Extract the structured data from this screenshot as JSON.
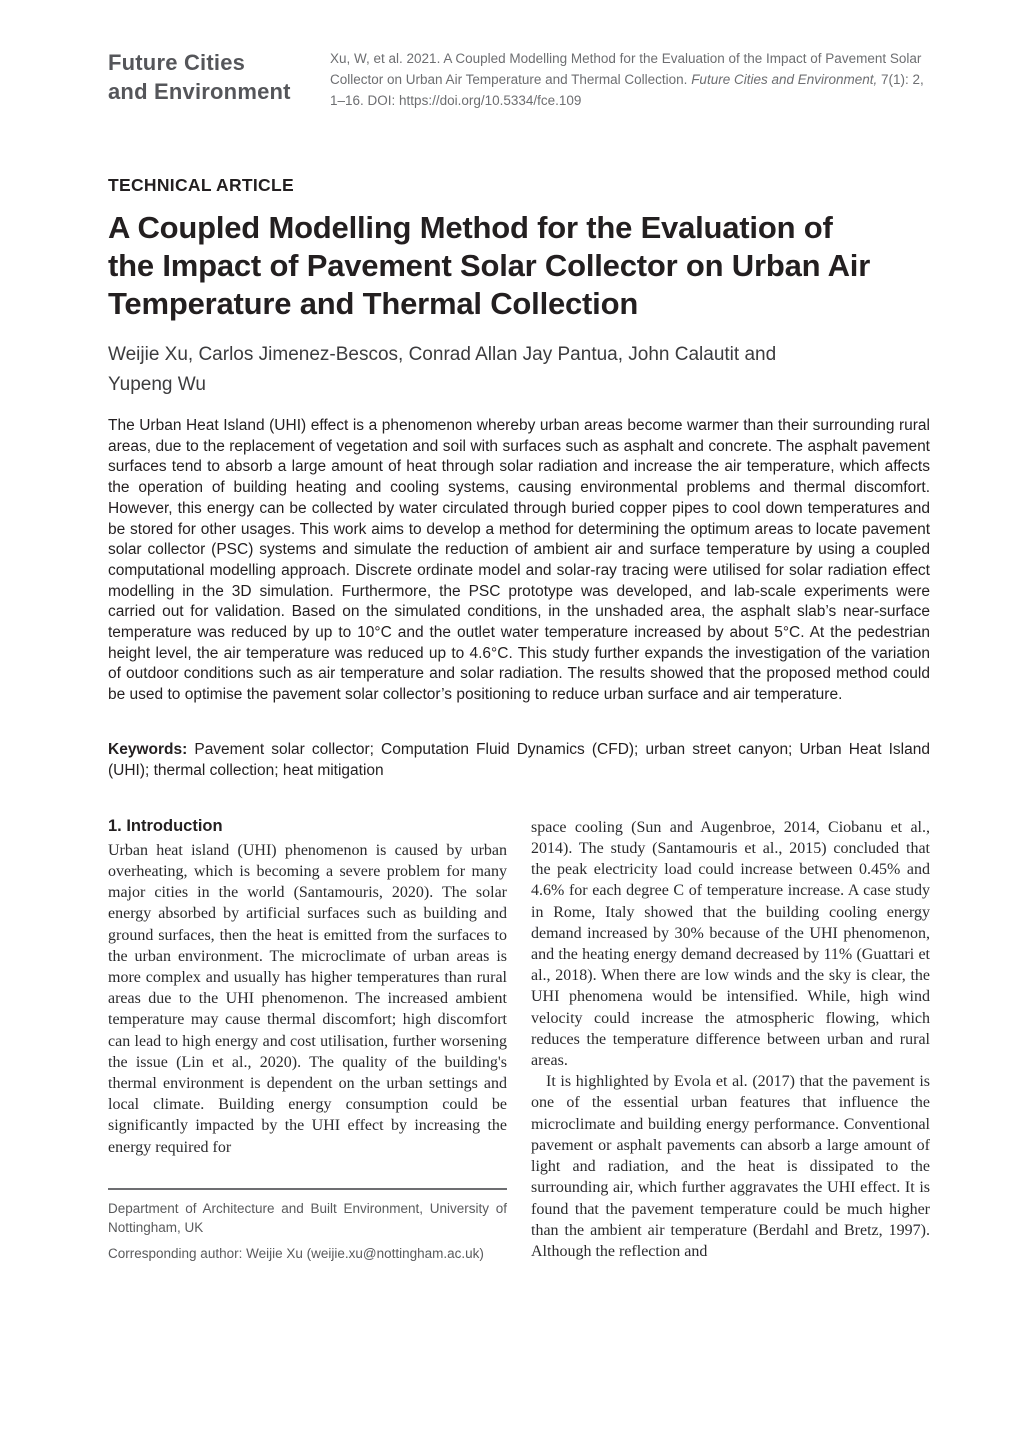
{
  "journal": {
    "name": "Future Cities\nand Environment"
  },
  "citation": {
    "before_italic": "Xu, W, et al. 2021. A Coupled Modelling Method for the Evaluation of the Impact of Pavement Solar Collector on Urban Air Temperature and Thermal Collection. ",
    "italic": "Future Cities and Environment,",
    "after_italic": " 7(1): 2, 1–16. DOI: ",
    "doi": "https://doi.org/10.5334/fce.109"
  },
  "article": {
    "type_label": "TECHNICAL ARTICLE",
    "title": "A Coupled Modelling Method for the Evaluation of\nthe Impact of Pavement Solar Collector on Urban Air\nTemperature and Thermal Collection",
    "authors": "Weijie Xu, Carlos Jimenez-Bescos, Conrad Allan Jay Pantua, John Calautit and\nYupeng Wu",
    "abstract": "The Urban Heat Island (UHI) effect is a phenomenon whereby urban areas become warmer than their surrounding rural areas, due to the replacement of vegetation and soil with surfaces such as asphalt and concrete. The asphalt pavement surfaces tend to absorb a large amount of heat through solar radiation and increase the air temperature, which affects the operation of building heating and cooling systems, causing environmental problems and thermal discomfort. However, this energy can be collected by water circulated through buried copper pipes to cool down temperatures and be stored for other usages. This work aims to develop a method for determining the optimum areas to locate pavement solar collector (PSC) systems and simulate the reduction of ambient air and surface temperature by using a coupled computational modelling approach. Discrete ordinate model and solar-ray tracing were utilised for solar radiation effect modelling in the 3D simulation. Furthermore, the PSC prototype was developed, and lab-scale experiments were carried out for validation. Based on the simulated conditions, in the unshaded area, the asphalt slab’s near-surface temperature was reduced by up to 10°C and the outlet water temperature increased by about 5°C. At the pedestrian height level, the air temperature was reduced up to 4.6°C. This study further expands the investigation of the variation of outdoor conditions such as air temperature and solar radiation. The results showed that the proposed method could be used to optimise the pavement solar collector’s positioning to reduce urban surface and air temperature.",
    "keywords_label": "Keywords:",
    "keywords_text": " Pavement solar collector; Computation Fluid Dynamics (CFD); urban street canyon; Urban Heat Island (UHI); thermal collection; heat mitigation"
  },
  "introduction": {
    "heading": "1. Introduction",
    "left_paragraph": "Urban heat island (UHI) phenomenon is caused by urban overheating, which is becoming a severe problem for many major cities in the world (Santamouris, 2020). The solar energy absorbed by artificial surfaces such as building and ground surfaces, then the heat is emitted from the surfaces to the urban environment. The microclimate of urban areas is more complex and usually has higher temperatures than rural areas due to the UHI phenomenon. The increased ambient temperature may cause thermal discomfort; high discomfort can lead to high energy and cost utilisation, further worsening the issue (Lin et al., 2020). The quality of the building's thermal environment is dependent on the urban settings and local climate. Building energy consumption could be significantly impacted by the UHI effect by increasing the energy required for",
    "right_paragraph1": "space cooling (Sun and Augenbroe, 2014, Ciobanu et al., 2014). The study (Santamouris et al., 2015) concluded that the peak electricity load could increase between 0.45% and 4.6% for each degree C of temperature increase. A case study in Rome, Italy showed that the building cooling energy demand increased by 30% because of the UHI phenomenon, and the heating energy demand decreased by 11% (Guattari et al., 2018). When there are low winds and the sky is clear, the UHI phenomena would be intensified. While, high wind velocity could increase the atmospheric flowing, which reduces the temperature difference between urban and rural areas.",
    "right_paragraph2": "It is highlighted by Evola et al. (2017) that the pavement is one of the essential urban features that influence the microclimate and building energy performance. Conventional pavement or asphalt pavements can absorb a large amount of light and radiation, and the heat is dissipated to the surrounding air, which further aggravates the UHI effect. It is found that the pavement temperature could be much higher than the ambient air temperature (Berdahl and Bretz, 1997). Although the reflection and"
  },
  "footnote": {
    "affiliation": "Department of Architecture and Built Environment, University of Nottingham, UK",
    "corresponding_prefix": "Corresponding author: Weijie Xu (",
    "email": "weijie.xu@nottingham.ac.uk",
    "corresponding_suffix": ")"
  }
}
